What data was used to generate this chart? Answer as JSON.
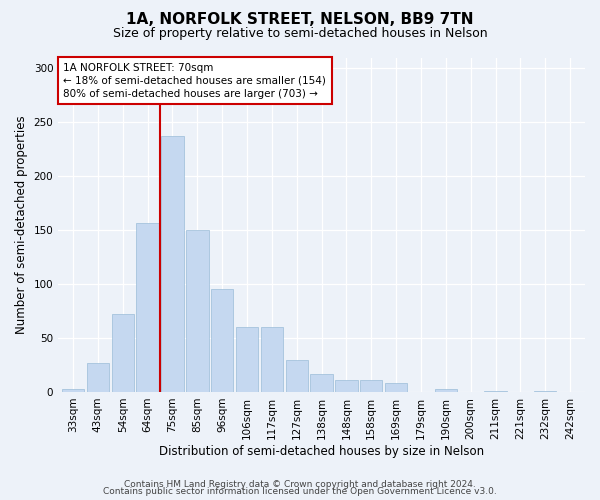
{
  "title": "1A, NORFOLK STREET, NELSON, BB9 7TN",
  "subtitle": "Size of property relative to semi-detached houses in Nelson",
  "xlabel": "Distribution of semi-detached houses by size in Nelson",
  "ylabel": "Number of semi-detached properties",
  "bar_labels": [
    "33sqm",
    "43sqm",
    "54sqm",
    "64sqm",
    "75sqm",
    "85sqm",
    "96sqm",
    "106sqm",
    "117sqm",
    "127sqm",
    "138sqm",
    "148sqm",
    "158sqm",
    "169sqm",
    "179sqm",
    "190sqm",
    "200sqm",
    "211sqm",
    "221sqm",
    "232sqm",
    "242sqm"
  ],
  "bar_values": [
    3,
    27,
    72,
    157,
    237,
    150,
    95,
    60,
    60,
    30,
    17,
    11,
    11,
    8,
    0,
    3,
    0,
    1,
    0,
    1,
    0
  ],
  "bar_color": "#c5d8f0",
  "bar_edge_color": "#9bbcd8",
  "vline_color": "#cc0000",
  "annotation_title": "1A NORFOLK STREET: 70sqm",
  "annotation_line1": "← 18% of semi-detached houses are smaller (154)",
  "annotation_line2": "80% of semi-detached houses are larger (703) →",
  "annotation_box_color": "#ffffff",
  "annotation_box_edge": "#cc0000",
  "ylim": [
    0,
    310
  ],
  "yticks": [
    0,
    50,
    100,
    150,
    200,
    250,
    300
  ],
  "footer1": "Contains HM Land Registry data © Crown copyright and database right 2024.",
  "footer2": "Contains public sector information licensed under the Open Government Licence v3.0.",
  "bg_color": "#edf2f9",
  "plot_bg_color": "#edf2f9",
  "title_fontsize": 11,
  "subtitle_fontsize": 9,
  "axis_label_fontsize": 8.5,
  "tick_fontsize": 7.5,
  "footer_fontsize": 6.5
}
